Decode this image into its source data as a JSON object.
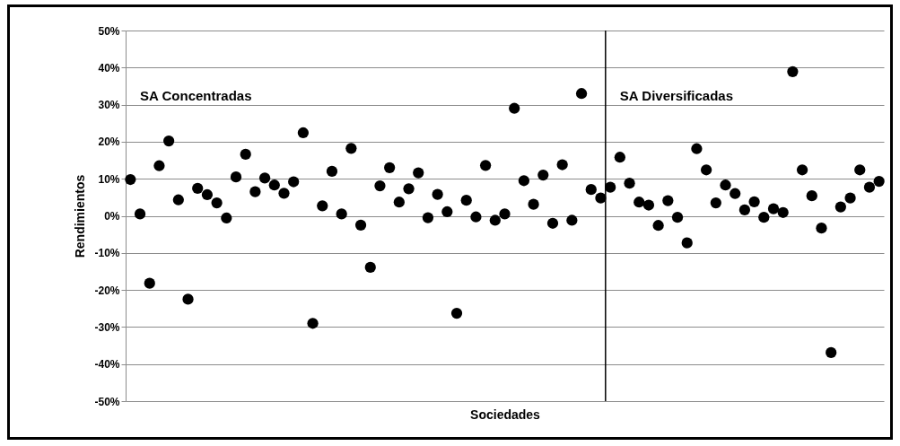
{
  "chart_data": {
    "type": "scatter",
    "xlabel": "Sociedades",
    "ylabel": "Rendimientos",
    "categories": [
      null,
      null,
      null,
      null,
      null,
      null,
      null,
      null,
      null,
      null,
      null,
      null,
      null,
      null,
      null,
      null,
      null,
      null,
      null,
      null,
      null,
      null,
      null,
      null,
      null,
      null,
      null,
      null,
      null,
      null,
      null,
      null,
      null,
      null,
      null,
      null,
      null,
      null,
      null,
      null,
      null,
      null,
      null,
      null,
      null,
      null,
      null,
      null,
      null,
      null,
      null,
      null,
      null,
      null,
      null,
      null,
      null,
      null,
      null,
      null,
      null,
      null,
      null,
      null,
      null,
      null,
      null,
      null,
      null,
      null,
      null,
      null,
      null,
      null,
      null,
      null,
      null,
      null,
      null
    ],
    "series": [
      {
        "color": "#000000",
        "values": [
          9.8,
          0.5,
          -18.2,
          13.5,
          20.2,
          4.3,
          -22.5,
          7.4,
          5.7,
          3.5,
          -0.6,
          10.5,
          16.6,
          6.5,
          10.2,
          8.3,
          6.1,
          9.2,
          22.4,
          -29.0,
          2.7,
          12.0,
          0.5,
          18.2,
          -2.5,
          -13.9,
          8.1,
          13.0,
          3.7,
          7.3,
          11.6,
          -0.5,
          5.8,
          1.1,
          -26.3,
          4.2,
          -0.3,
          13.6,
          -1.2,
          0.5,
          29.0,
          9.5,
          3.1,
          11.0,
          -2.0,
          13.8,
          -1.2,
          33.0,
          7.1,
          4.8,
          null,
          null,
          null,
          null,
          null,
          null,
          null,
          null,
          null,
          null,
          null,
          null,
          null,
          null,
          null,
          null,
          null,
          null,
          null,
          null,
          null,
          null,
          null,
          null,
          null,
          null,
          null,
          null,
          null
        ]
      },
      {
        "color": "#000000",
        "values": [
          null,
          null,
          null,
          null,
          null,
          null,
          null,
          null,
          null,
          null,
          null,
          null,
          null,
          null,
          null,
          null,
          null,
          null,
          null,
          null,
          null,
          null,
          null,
          null,
          null,
          null,
          null,
          null,
          null,
          null,
          null,
          null,
          null,
          null,
          null,
          null,
          null,
          null,
          null,
          null,
          null,
          null,
          null,
          null,
          null,
          null,
          null,
          null,
          null,
          null,
          7.7,
          15.8,
          8.8,
          3.7,
          2.9,
          -2.6,
          4.1,
          -0.4,
          -7.3,
          18.1,
          12.4,
          3.5,
          8.3,
          6.0,
          1.6,
          3.8,
          -0.4,
          1.9,
          0.9,
          38.9,
          12.4,
          5.4,
          -3.3,
          -36.9,
          2.4,
          4.8,
          12.4,
          7.7,
          9.3
        ]
      }
    ],
    "ylim": [
      -50,
      50
    ],
    "yticks": [
      {
        "value": -50,
        "label": "-50%"
      },
      {
        "value": -40,
        "label": "-40%"
      },
      {
        "value": -30,
        "label": "-30%"
      },
      {
        "value": -20,
        "label": "-20%"
      },
      {
        "value": -10,
        "label": "-10%"
      },
      {
        "value": 0,
        "label": "0%"
      },
      {
        "value": 10,
        "label": "10%"
      },
      {
        "value": 20,
        "label": "20%"
      },
      {
        "value": 30,
        "label": "30%"
      },
      {
        "value": 40,
        "label": "40%"
      },
      {
        "value": 50,
        "label": "50%"
      }
    ],
    "annotations": [
      "SA Concentradas",
      "SA Diversificadas"
    ],
    "grid": "y",
    "legend": false,
    "marker": "circle",
    "tick_labels": "y"
  }
}
